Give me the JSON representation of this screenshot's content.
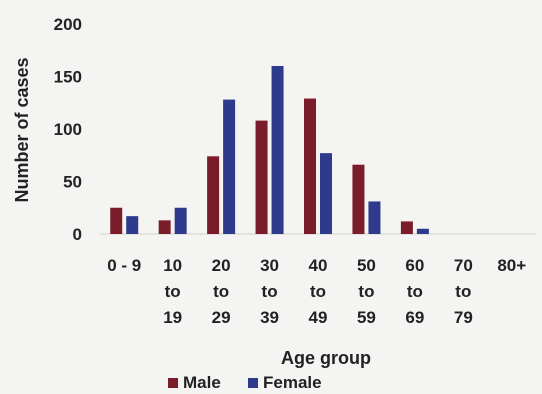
{
  "chart_data": {
    "type": "bar",
    "categories": [
      [
        "0 - 9"
      ],
      [
        "10",
        "to",
        "19"
      ],
      [
        "20",
        "to",
        "29"
      ],
      [
        "30",
        "to",
        "39"
      ],
      [
        "40",
        "to",
        "49"
      ],
      [
        "50",
        "to",
        "59"
      ],
      [
        "60",
        "to",
        "69"
      ],
      [
        "70",
        "to",
        "79"
      ],
      [
        "80+"
      ]
    ],
    "series": [
      {
        "name": "Male",
        "color": "#7b1c2a",
        "values": [
          25,
          13,
          74,
          108,
          129,
          66,
          12,
          0,
          0
        ]
      },
      {
        "name": "Female",
        "color": "#2e3a8c",
        "values": [
          17,
          25,
          128,
          160,
          77,
          31,
          5,
          0,
          0
        ]
      }
    ],
    "title": "",
    "xlabel": "Age group",
    "ylabel": "Number of cases",
    "ylim": [
      0,
      200
    ],
    "yticks": [
      "0",
      "50",
      "100",
      "150",
      "200"
    ],
    "grid": false,
    "legend": "bottom"
  }
}
